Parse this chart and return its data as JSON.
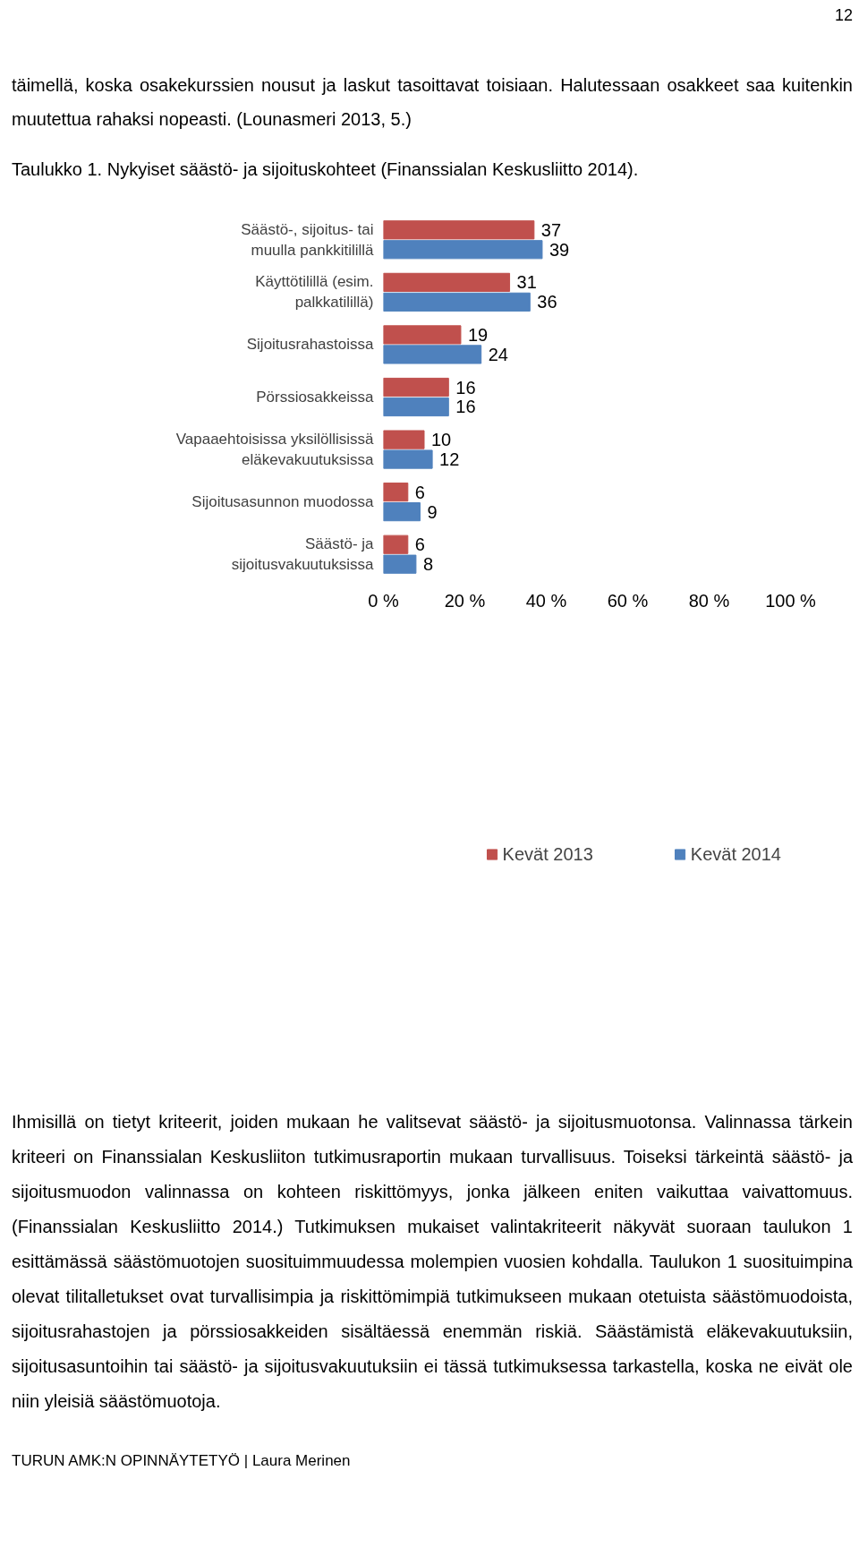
{
  "chart_data": {
    "type": "bar",
    "orientation": "horizontal",
    "title": "Taulukko 1. Nykyiset säästö- ja sijoituskohteet (Finanssialan Keskusliitto 2014).",
    "categories": [
      "Säästö-, sijoitus- tai muulla pankkitilillä",
      "Käyttötilillä (esim. palkkatilillä)",
      "Sijoitusrahastoissa",
      "Pörssiosakkeissa",
      "Vapaaehtoisissa yksilöllisissä eläkevakuutuksissa",
      "Sijoitusasunnon muodossa",
      "Säästö- ja sijoitusvakuutuksissa"
    ],
    "series": [
      {
        "name": "Kevät 2013",
        "color": "#c0504d",
        "values": [
          37,
          31,
          19,
          16,
          10,
          6,
          6
        ]
      },
      {
        "name": "Kevät 2014",
        "color": "#4f81bd",
        "values": [
          39,
          36,
          24,
          16,
          12,
          9,
          8
        ]
      }
    ],
    "xlim": [
      0,
      100
    ],
    "xticks": [
      {
        "value": 0,
        "label": "0 %"
      },
      {
        "value": 20,
        "label": "20 %"
      },
      {
        "value": 40,
        "label": "40 %"
      },
      {
        "value": 60,
        "label": "60 %"
      },
      {
        "value": 80,
        "label": "80 %"
      },
      {
        "value": 100,
        "label": "100 %"
      }
    ],
    "data_labels": true,
    "grid": false,
    "legend": "bottom",
    "annotations": [
      "12",
      "täimellä, koska osakekurssien nousut ja laskut tasoittavat toisiaan. Halutessaan osakkeet saa kuitenkin muutettua rahaksi nopeasti. (Lounasmeri 2013, 5.)",
      "Ihmisillä on tietyt kriteerit, joiden mukaan he valitsevat säästö- ja sijoitusmuotonsa. Valinnassa tärkein kriteeri on Finanssialan Keskusliiton tutkimusraportin mukaan turvallisuus. Toiseksi tärkeintä säästö- ja sijoitusmuodon valinnassa on kohteen riskittömyys, jonka jälkeen eniten vaikuttaa vaivattomuus. (Finanssialan Keskusliitto 2014.) Tutkimuksen mukaiset valintakriteerit näkyvät suoraan taulukon 1 esittämässä säästömuotojen suosituimmuudessa molempien vuosien kohdalla. Taulukon 1 suosituimpina olevat tilitalletukset ovat turvallisimpia ja riskittömimpiä tutkimukseen mukaan otetuista säästömuodoista, sijoitusrahastojen ja pörssiosakkeiden sisältäessä enemmän riskiä. Säästämistä eläkevakuutuksiin, sijoitusasuntoihin tai säästö- ja sijoitusvakuutuksiin ei tässä tutkimuksessa tarkastella, koska ne eivät ole niin yleisiä säästömuotoja.",
      "TURUN AMK:N OPINNÄYTETYÖ | Laura Merinen"
    ]
  }
}
